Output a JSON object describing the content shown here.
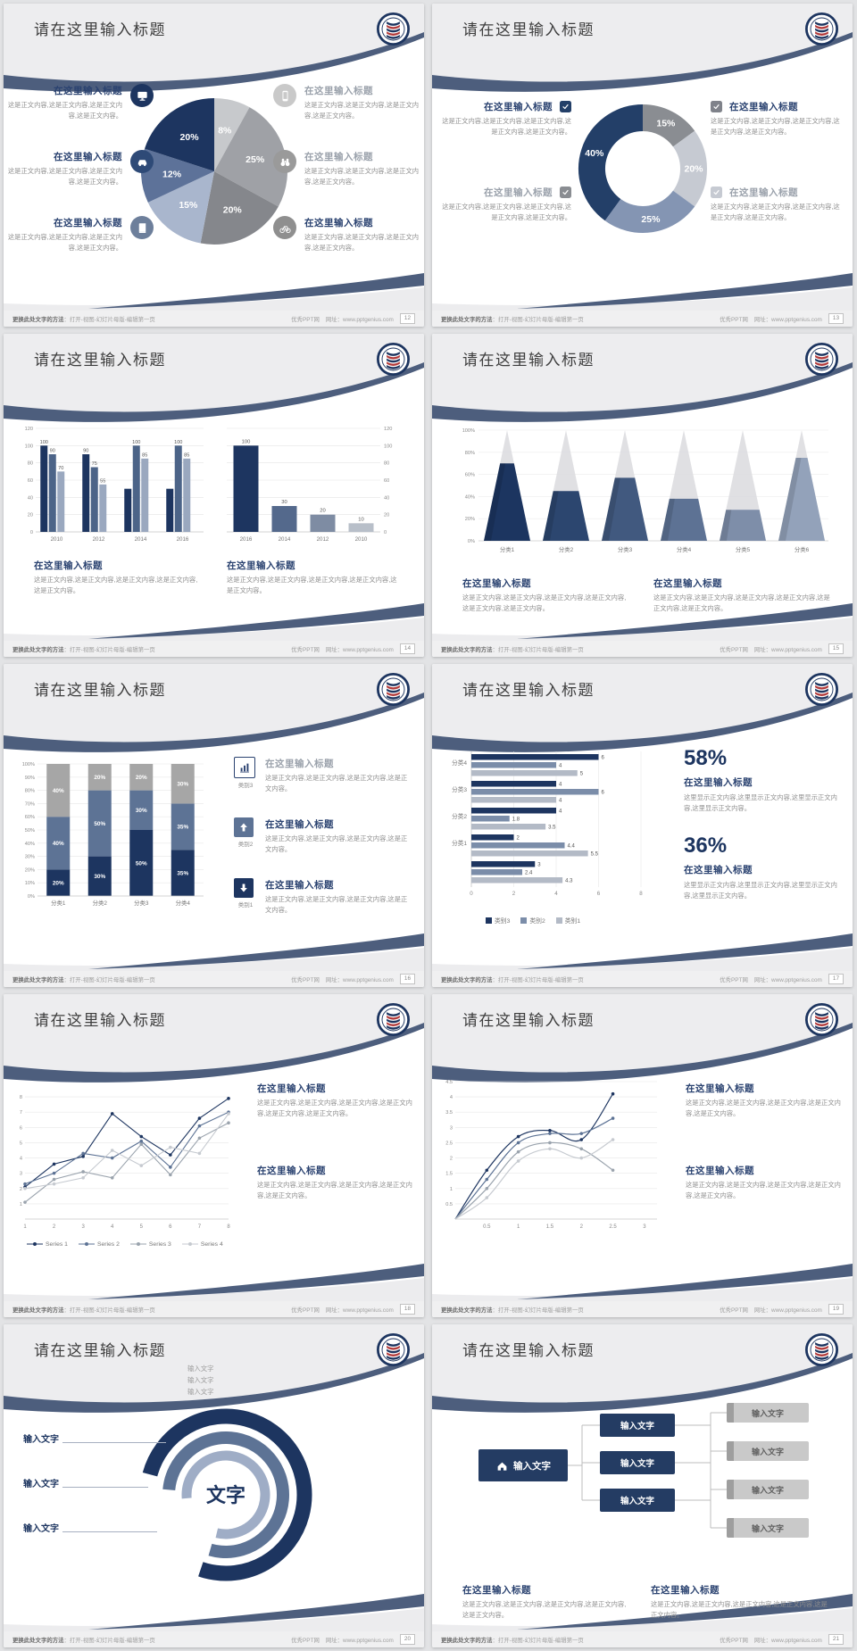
{
  "common": {
    "slide_title": "请在这里输入标题",
    "section_title": "在这里输入标题",
    "body2": "这是正文内容,这是正文内容,这是正文内容,这是正文内容。",
    "body3": "这是正文内容,这是正文内容,这是正文内容,这是正文内容,这是正文内容。",
    "body4": "这是正文内容,这是正文内容,这是正文内容,这是正文内容,这是正文内容,这是正文内容。",
    "bodyc": "这里显示正文内容,这里显示正文内容,这里显示正文内容,这里显示正文内容。"
  },
  "footer": {
    "left_bold": "更换此处文字的方法",
    "left_rest": "：打开-视图-幻灯片母版-编辑第一页",
    "site": "优秀PPT网",
    "url": "网址：www.pptgenius.com"
  },
  "colors": {
    "navy": "#1d3560",
    "slate": "#5d7395",
    "lightslate": "#9fadc6",
    "gray": "#9a9a9a",
    "lightgray": "#c9c9c9",
    "red": "#b23a3a",
    "heading": "#2a4270",
    "headingGray": "#9aa1ab"
  },
  "slides": [
    {
      "page_no": "12",
      "layout": "pie",
      "chart_data": {
        "type": "pie",
        "slices": [
          {
            "label": "8%",
            "value": 8,
            "color": "#c7c9cc"
          },
          {
            "label": "25%",
            "value": 25,
            "color": "#9fa1a6"
          },
          {
            "label": "20%",
            "value": 20,
            "color": "#85878c"
          },
          {
            "label": "15%",
            "value": 15,
            "color": "#a9b6cd"
          },
          {
            "label": "12%",
            "value": 12,
            "color": "#5d7299"
          },
          {
            "label": "20%",
            "value": 20,
            "color": "#1d3560"
          }
        ]
      },
      "callouts_left": [
        {
          "icon": "monitor-icon",
          "icon_bg": "#1d3560",
          "title": "在这里输入标题",
          "title_gray": false,
          "text": "这是正文内容,这是正文内容,这是正文内容,这是正文内容。"
        },
        {
          "icon": "car-icon",
          "icon_bg": "#2e4a77",
          "title": "在这里输入标题",
          "title_gray": false,
          "text": "这是正文内容,这是正文内容,这是正文内容,这是正文内容。"
        },
        {
          "icon": "book-icon",
          "icon_bg": "#6d7f9b",
          "title": "在这里输入标题",
          "title_gray": false,
          "text": "这是正文内容,这是正文内容,这是正文内容,这是正文内容。"
        }
      ],
      "callouts_right": [
        {
          "icon": "phone-icon",
          "icon_bg": "#c9c9c9",
          "title": "在这里输入标题",
          "title_gray": true,
          "text": "这是正文内容,这是正文内容,这是正文内容,这是正文内容。"
        },
        {
          "icon": "binoculars-icon",
          "icon_bg": "#9a9a9a",
          "title": "在这里输入标题",
          "title_gray": true,
          "text": "这是正文内容,这是正文内容,这是正文内容,这是正文内容。"
        },
        {
          "icon": "bicycle-icon",
          "icon_bg": "#8f8f8f",
          "title": "在这里输入标题",
          "title_gray": false,
          "text": "这是正文内容,这是正文内容,这是正文内容,这是正文内容。"
        }
      ]
    },
    {
      "page_no": "13",
      "layout": "donut",
      "chart_data": {
        "type": "pie",
        "donut": true,
        "slices": [
          {
            "label": "15%",
            "value": 15,
            "color": "#8a8d92"
          },
          {
            "label": "20%",
            "value": 20,
            "color": "#c6cad2"
          },
          {
            "label": "25%",
            "value": 25,
            "color": "#8495b3"
          },
          {
            "label": "40%",
            "value": 40,
            "color": "#233f68"
          }
        ]
      },
      "callouts_left": [
        {
          "check_color": "#233f68",
          "title": "在这里输入标题",
          "title_gray": false,
          "text": "这是正文内容,这是正文内容,这是正文内容,这是正文内容,这是正文内容。"
        },
        {
          "check_color": "#8a8d92",
          "title": "在这里输入标题",
          "title_gray": true,
          "text": "这是正文内容,这是正文内容,这是正文内容,这是正文内容,这是正文内容。"
        }
      ],
      "callouts_right": [
        {
          "check_color": "#7f828a",
          "title": "在这里输入标题",
          "title_gray": false,
          "text": "这是正文内容,这是正文内容,这是正文内容,这是正文内容,这是正文内容。"
        },
        {
          "check_color": "#c6cad2",
          "title": "在这里输入标题",
          "title_gray": true,
          "text": "这是正文内容,这是正文内容,这是正文内容,这是正文内容,这是正文内容。"
        }
      ]
    },
    {
      "page_no": "14",
      "layout": "bars2",
      "chart_data": [
        {
          "type": "bar",
          "grouped": true,
          "categories": [
            "2010",
            "2012",
            "2014",
            "2016"
          ],
          "series_colors": [
            "#1d3560",
            "#4c6488",
            "#9aa8bf"
          ],
          "values": [
            [
              100,
              90,
              70
            ],
            [
              90,
              75,
              55
            ],
            [
              50,
              100,
              85
            ],
            [
              50,
              100,
              85
            ]
          ],
          "labels": [
            [
              "100",
              "90",
              "70"
            ],
            [
              "90",
              "75",
              "55"
            ],
            [
              "",
              "100",
              "85"
            ],
            [
              "",
              "100",
              "85"
            ]
          ],
          "yticks": [
            0,
            20,
            40,
            60,
            80,
            100,
            120
          ],
          "ylim": [
            0,
            120
          ]
        },
        {
          "type": "bar",
          "categories": [
            "2016",
            "2014",
            "2012",
            "2010"
          ],
          "values": [
            100,
            30,
            20,
            10
          ],
          "labels": [
            "100",
            "30",
            "20",
            "10"
          ],
          "bar_colors": [
            "#1d3560",
            "#54698c",
            "#7e8ca3",
            "#b8bfc9"
          ],
          "yticks": [
            0,
            20,
            40,
            60,
            80,
            100,
            120
          ],
          "ylim": [
            0,
            120
          ],
          "yaxis_side": "right"
        }
      ],
      "blocks": [
        {
          "title": "在这里输入标题",
          "text": "这是正文内容,这是正文内容,这是正文内容,这是正文内容,这是正文内容。"
        },
        {
          "title": "在这里输入标题",
          "text": "这是正文内容,这是正文内容,这是正文内容,这是正文内容,这是正文内容。"
        }
      ]
    },
    {
      "page_no": "15",
      "layout": "pyramid",
      "chart_data": {
        "type": "pyramid",
        "categories": [
          "分类1",
          "分类2",
          "分类3",
          "分类4",
          "分类5",
          "分类6"
        ],
        "values_pct": [
          70,
          45,
          57,
          38,
          28,
          75
        ],
        "colors": [
          "#1c3560",
          "#2c466f",
          "#41597f",
          "#5d7294",
          "#7e8ea9",
          "#93a2ba"
        ],
        "yticks": [
          "0%",
          "20%",
          "40%",
          "60%",
          "80%",
          "100%"
        ]
      },
      "blocks": [
        {
          "title": "在这里输入标题",
          "text": "这是正文内容,这是正文内容,这是正文内容,这是正文内容,这是正文内容,这是正文内容。"
        },
        {
          "title": "在这里输入标题",
          "text": "这是正文内容,这是正文内容,这是正文内容,这是正文内容,这是正文内容,这是正文内容。"
        }
      ]
    },
    {
      "page_no": "16",
      "layout": "stacked",
      "chart_data": {
        "type": "bar",
        "stacked": true,
        "categories": [
          "分类1",
          "分类2",
          "分类3",
          "分类4"
        ],
        "series": [
          {
            "name": "类别1",
            "color": "#1d3560",
            "values": [
              20,
              30,
              50,
              35
            ]
          },
          {
            "name": "类别2",
            "color": "#5d7395",
            "values": [
              40,
              50,
              30,
              35
            ]
          },
          {
            "name": "类别3",
            "color": "#a6a6a6",
            "values": [
              40,
              20,
              20,
              30
            ]
          }
        ],
        "yticks": [
          "0%",
          "10%",
          "20%",
          "30%",
          "40%",
          "50%",
          "60%",
          "70%",
          "80%",
          "90%",
          "100%"
        ]
      },
      "callouts": [
        {
          "icon": "chart-icon",
          "icon_style": "outline",
          "icon_color": "#2a4270",
          "icon_label": "类别3",
          "title": "在这里输入标题",
          "title_gray": true,
          "text": "这是正文内容,这是正文内容,这是正文内容,这是正文内容。"
        },
        {
          "icon": "arrow-up-icon",
          "icon_style": "fill",
          "icon_color": "#5d7395",
          "icon_label": "类别2",
          "title": "在这里输入标题",
          "title_gray": false,
          "text": "这是正文内容,这是正文内容,这是正文内容,这是正文内容。"
        },
        {
          "icon": "arrow-down-icon",
          "icon_style": "fill",
          "icon_color": "#1d3560",
          "icon_label": "类别1",
          "title": "在这里输入标题",
          "title_gray": false,
          "text": "这是正文内容,这是正文内容,这是正文内容,这是正文内容。"
        }
      ]
    },
    {
      "page_no": "17",
      "layout": "hbar",
      "chart_data": {
        "type": "bar",
        "horizontal": true,
        "groups": [
          {
            "label": "分类4",
            "values": [
              6,
              4,
              5
            ]
          },
          {
            "label": "分类3",
            "values": [
              4,
              6,
              4
            ]
          },
          {
            "label": "分类2",
            "values": [
              4,
              1.8,
              3.5
            ]
          },
          {
            "label": "分类1",
            "values": [
              2,
              4.4,
              5.5
            ]
          },
          {
            "label": "",
            "values": [
              3,
              2.4,
              4.3
            ]
          }
        ],
        "series_colors": [
          "#1d3560",
          "#7b8da9",
          "#b3bac6"
        ],
        "xticks": [
          0,
          2,
          4,
          6,
          8
        ],
        "xlim": [
          0,
          8
        ],
        "legend": [
          {
            "label": "类别3",
            "color": "#1d3560"
          },
          {
            "label": "类别2",
            "color": "#7b8da9"
          },
          {
            "label": "类别1",
            "color": "#b3bac6"
          }
        ]
      },
      "stats": [
        {
          "value": "58%",
          "title": "在这里输入标题",
          "text": "这里显示正文内容,这里显示正文内容,这里显示正文内容,这里显示正文内容。"
        },
        {
          "value": "36%",
          "title": "在这里输入标题",
          "text": "这里显示正文内容,这里显示正文内容,这里显示正文内容,这里显示正文内容。"
        }
      ]
    },
    {
      "page_no": "18",
      "layout": "line",
      "chart_data": {
        "type": "line",
        "x": [
          1,
          2,
          3,
          4,
          5,
          6,
          7,
          8
        ],
        "yticks": [
          1,
          2,
          3,
          4,
          5,
          6,
          7,
          8
        ],
        "ylim": [
          0,
          9
        ],
        "series": [
          {
            "name": "Series 1",
            "color": "#1d3560",
            "values": [
              2.1,
              3.6,
              4.1,
              6.9,
              5.4,
              4.2,
              6.6,
              7.9
            ]
          },
          {
            "name": "Series 2",
            "color": "#5d7395",
            "values": [
              2.3,
              3.0,
              4.3,
              4.0,
              5.1,
              3.4,
              6.1,
              7.0
            ]
          },
          {
            "name": "Series 3",
            "color": "#9aa3ad",
            "values": [
              1.1,
              2.6,
              3.1,
              2.7,
              4.9,
              2.9,
              5.3,
              6.3
            ]
          },
          {
            "name": "Series 4",
            "color": "#c6cad0",
            "values": [
              2.0,
              2.3,
              2.7,
              4.5,
              3.5,
              4.7,
              4.3,
              6.9
            ]
          }
        ],
        "legend_position": "bottom"
      },
      "blocks": [
        {
          "title": "在这里输入标题",
          "text": "这是正文内容,这是正文内容,这是正文内容,这是正文内容,这是正文内容,这是正文内容。"
        },
        {
          "title": "在这里输入标题",
          "text": "这是正文内容,这是正文内容,这是正文内容,这是正文内容,这是正文内容。"
        }
      ]
    },
    {
      "page_no": "19",
      "layout": "curve",
      "chart_data": {
        "type": "line",
        "smooth": true,
        "xticks": [
          0.5,
          1,
          1.5,
          2,
          2.5,
          3
        ],
        "xlim": [
          0,
          3.2
        ],
        "yticks": [
          0.5,
          1,
          1.5,
          2,
          2.5,
          3,
          3.5,
          4,
          4.5
        ],
        "ylim": [
          0,
          4.5
        ],
        "series": [
          {
            "name": "series-navy",
            "color": "#1d3560",
            "points": [
              [
                0,
                0
              ],
              [
                0.5,
                1.6
              ],
              [
                1,
                2.7
              ],
              [
                1.5,
                2.9
              ],
              [
                2,
                2.6
              ],
              [
                2.5,
                4.1
              ]
            ]
          },
          {
            "name": "series-slate",
            "color": "#5d7395",
            "points": [
              [
                0,
                0
              ],
              [
                0.5,
                1.3
              ],
              [
                1,
                2.5
              ],
              [
                1.5,
                2.8
              ],
              [
                2,
                2.8
              ],
              [
                2.5,
                3.3
              ]
            ]
          },
          {
            "name": "series-gray",
            "color": "#9aa3ad",
            "points": [
              [
                0,
                0
              ],
              [
                0.5,
                1.0
              ],
              [
                1,
                2.2
              ],
              [
                1.5,
                2.5
              ],
              [
                2,
                2.3
              ],
              [
                2.5,
                1.6
              ]
            ]
          },
          {
            "name": "series-light",
            "color": "#c6cad0",
            "points": [
              [
                0,
                0
              ],
              [
                0.5,
                0.7
              ],
              [
                1,
                1.9
              ],
              [
                1.5,
                2.3
              ],
              [
                2,
                2.0
              ],
              [
                2.5,
                2.6
              ]
            ]
          }
        ]
      },
      "blocks": [
        {
          "title": "在这里输入标题",
          "text": "这是正文内容,这是正文内容,这是正文内容,这是正文内容,这是正文内容。"
        },
        {
          "title": "在这里输入标题",
          "text": "这是正文内容,这是正文内容,这是正文内容,这是正文内容,这是正文内容。"
        }
      ]
    },
    {
      "page_no": "20",
      "layout": "rings",
      "diagram": {
        "center_label": "文字",
        "left_labels": [
          "输入文字",
          "输入文字",
          "输入文字"
        ],
        "top_labels": [
          "输入文字",
          "输入文字",
          "输入文字"
        ],
        "ring_colors": [
          "#1d3560",
          "#5d7395",
          "#9fadc6"
        ]
      }
    },
    {
      "page_no": "21",
      "layout": "flow",
      "diagram": {
        "root_label": "输入文字",
        "mid_labels": [
          "输入文字",
          "输入文字",
          "输入文字"
        ],
        "right_labels": [
          "输入文字",
          "输入文字",
          "输入文字",
          "输入文字"
        ],
        "root_color": "#243c63",
        "mid_color": "#243c63",
        "right_color": "#c9c9c9"
      },
      "blocks": [
        {
          "title": "在这里输入标题",
          "text": "这是正文内容,这是正文内容,这是正文内容,这是正文内容,这是正文内容。"
        },
        {
          "title": "在这里输入标题",
          "text": "这是正文内容,这是正文内容,这是正文内容,这是正文内容,这是正文内容。"
        }
      ]
    }
  ]
}
